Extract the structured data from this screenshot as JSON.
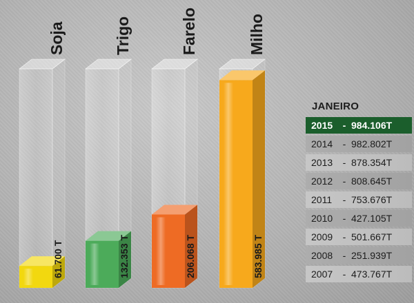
{
  "chart_data": {
    "type": "bar",
    "categories": [
      "Soja",
      "Trigo",
      "Farelo",
      "Milho"
    ],
    "values": [
      61700,
      132353,
      206068,
      583985
    ],
    "value_labels": [
      "61.700 T",
      "132.353 T",
      "206.068 T",
      "583.985 T"
    ],
    "colors": [
      "#f2d80f",
      "#4cab5a",
      "#ee6b24",
      "#f7a91c"
    ],
    "ylim": [
      0,
      600000
    ]
  },
  "table": {
    "title": "JANEIRO",
    "rows": [
      {
        "year": "2015",
        "value": "984.106T",
        "highlight": true
      },
      {
        "year": "2014",
        "value": "982.802T"
      },
      {
        "year": "2013",
        "value": "878.354T"
      },
      {
        "year": "2012",
        "value": "808.645T"
      },
      {
        "year": "2011",
        "value": "753.676T"
      },
      {
        "year": "2010",
        "value": "427.105T"
      },
      {
        "year": "2009",
        "value": "501.667T"
      },
      {
        "year": "2008",
        "value": "251.939T"
      },
      {
        "year": "2007",
        "value": "473.767T"
      }
    ]
  }
}
